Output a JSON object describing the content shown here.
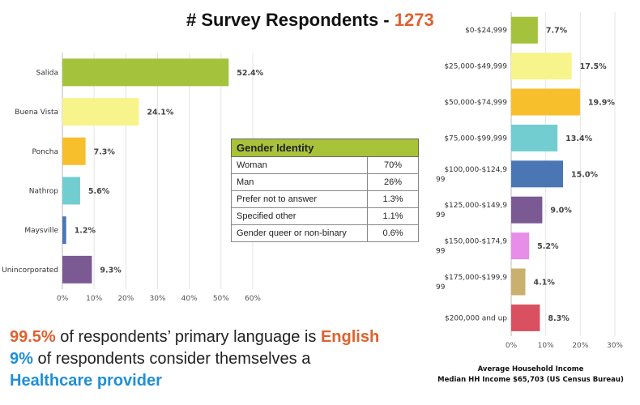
{
  "title": {
    "text": "# Survey Respondents  -",
    "count": "1273"
  },
  "gender_table": {
    "header": "Gender Identity",
    "rows": [
      {
        "label": "Woman",
        "value": "70%"
      },
      {
        "label": "Man",
        "value": "26%"
      },
      {
        "label": "Prefer not to answer",
        "value": "1.3%"
      },
      {
        "label": "Specified other",
        "value": "1.1%"
      },
      {
        "label": "Gender queer or non-binary",
        "value": "0.6%"
      }
    ]
  },
  "notes": {
    "line1_value": "99.5%",
    "line1_text": " of respondents’ primary language is ",
    "line1_emph": "English",
    "line2_value": "9%",
    "line2_text": " of respondents consider themselves a",
    "line3_emph": "Healthcare provider"
  },
  "income_caption": {
    "line1": "Average Household Income",
    "line2": "Median HH Income $65,703 (US Census Bureau)"
  },
  "chart_data": [
    {
      "type": "bar",
      "orientation": "horizontal",
      "title": "",
      "categories": [
        "Salida",
        "Buena Vista",
        "Poncha",
        "Nathrop",
        "Maysville",
        "Unincorporated"
      ],
      "values": [
        52.4,
        24.1,
        7.3,
        5.6,
        1.2,
        9.3
      ],
      "value_labels": [
        "52.4%",
        "24.1%",
        "7.3%",
        "5.6%",
        "1.2%",
        "9.3%"
      ],
      "colors": [
        "#a4c23c",
        "#f7f48c",
        "#f7bf2c",
        "#71cdd0",
        "#4a76b4",
        "#7b5a93"
      ],
      "xlim": [
        0,
        60
      ],
      "xticks": [
        "0%",
        "10%",
        "20%",
        "30%",
        "40%",
        "50%",
        "60%"
      ],
      "xtick_values": [
        0,
        10,
        20,
        30,
        40,
        50,
        60
      ]
    },
    {
      "type": "bar",
      "orientation": "horizontal",
      "title": "Average Household Income",
      "categories": [
        "$0-$24,999",
        "$25,000-$49,999",
        "$50,000-$74,999",
        "$75,000-$99,999",
        "$100,000-$124,999",
        "$125,000-$149,999",
        "$150,000-$174,999",
        "$175,000-$199,999",
        "$200,000 and up"
      ],
      "category_lines": [
        [
          "$0-$24,999"
        ],
        [
          "$25,000-$49,999"
        ],
        [
          "$50,000-$74,999"
        ],
        [
          "$75,000-$99,999"
        ],
        [
          "$100,000-$124,9",
          "99"
        ],
        [
          "$125,000-$149,9",
          "99"
        ],
        [
          "$150,000-$174,9",
          "99"
        ],
        [
          "$175,000-$199,9",
          "99"
        ],
        [
          "$200,000 and up"
        ]
      ],
      "values": [
        7.7,
        17.5,
        19.9,
        13.4,
        15.0,
        9.0,
        5.2,
        4.1,
        8.3
      ],
      "value_labels": [
        "7.7%",
        "17.5%",
        "19.9%",
        "13.4%",
        "15.0%",
        "9.0%",
        "5.2%",
        "4.1%",
        "8.3%"
      ],
      "colors": [
        "#a4c23c",
        "#f7f48c",
        "#f7bf2c",
        "#71cdd0",
        "#4a76b4",
        "#7b5a93",
        "#e78ee8",
        "#c9b06e",
        "#d95061"
      ],
      "xlim": [
        0,
        30
      ],
      "xticks": [
        "0%",
        "10%",
        "20%",
        "30%"
      ],
      "xtick_values": [
        0,
        10,
        20,
        30
      ]
    }
  ]
}
